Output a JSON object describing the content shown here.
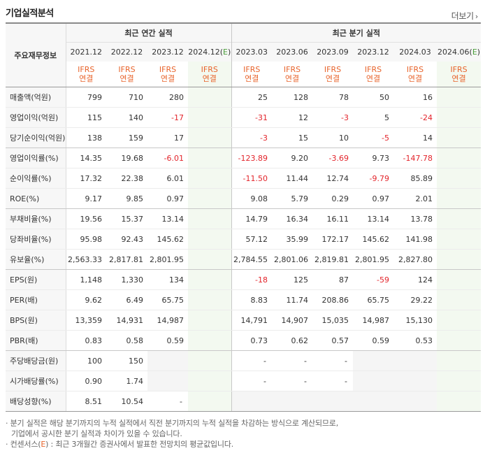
{
  "title": "기업실적분석",
  "more_label": "더보기",
  "header": {
    "row_label": "주요재무정보",
    "annual_group": "최근 연간 실적",
    "quarter_group": "최근 분기 실적",
    "annual_periods": [
      "2021.12",
      "2022.12",
      "2023.12",
      "2024.12(E)"
    ],
    "quarter_periods": [
      "2023.03",
      "2023.06",
      "2023.09",
      "2023.12",
      "2024.03",
      "2024.06(E)"
    ],
    "std_top": "IFRS",
    "std_bottom": "연결"
  },
  "rows": [
    {
      "label": "매출액(억원)",
      "values": [
        "799",
        "710",
        "280",
        "",
        "25",
        "128",
        "78",
        "50",
        "16",
        ""
      ]
    },
    {
      "label": "영업이익(억원)",
      "values": [
        "115",
        "140",
        "-17",
        "",
        "-31",
        "12",
        "-3",
        "5",
        "-24",
        ""
      ]
    },
    {
      "label": "당기순이익(억원)",
      "values": [
        "138",
        "159",
        "17",
        "",
        "-3",
        "15",
        "10",
        "-5",
        "14",
        ""
      ]
    },
    {
      "label": "영업이익률(%)",
      "values": [
        "14.35",
        "19.68",
        "-6.01",
        "",
        "-123.89",
        "9.20",
        "-3.69",
        "9.73",
        "-147.78",
        ""
      ]
    },
    {
      "label": "순이익률(%)",
      "values": [
        "17.32",
        "22.38",
        "6.01",
        "",
        "-11.50",
        "11.44",
        "12.74",
        "-9.79",
        "85.89",
        ""
      ]
    },
    {
      "label": "ROE(%)",
      "values": [
        "9.17",
        "9.85",
        "0.97",
        "",
        "9.08",
        "5.79",
        "0.29",
        "0.97",
        "2.01",
        ""
      ]
    },
    {
      "label": "부채비율(%)",
      "values": [
        "19.56",
        "15.37",
        "13.14",
        "",
        "14.79",
        "16.34",
        "16.11",
        "13.14",
        "13.78",
        ""
      ]
    },
    {
      "label": "당좌비율(%)",
      "values": [
        "95.98",
        "92.43",
        "145.62",
        "",
        "57.12",
        "35.99",
        "172.17",
        "145.62",
        "141.98",
        ""
      ]
    },
    {
      "label": "유보율(%)",
      "values": [
        "2,563.33",
        "2,817.81",
        "2,801.95",
        "",
        "2,784.55",
        "2,801.06",
        "2,819.81",
        "2,801.95",
        "2,827.80",
        ""
      ]
    },
    {
      "label": "EPS(원)",
      "values": [
        "1,148",
        "1,330",
        "134",
        "",
        "-18",
        "125",
        "87",
        "-59",
        "124",
        ""
      ]
    },
    {
      "label": "PER(배)",
      "values": [
        "9.62",
        "6.49",
        "65.75",
        "",
        "8.83",
        "11.74",
        "208.86",
        "65.75",
        "29.22",
        ""
      ]
    },
    {
      "label": "BPS(원)",
      "values": [
        "13,359",
        "14,931",
        "14,987",
        "",
        "14,791",
        "14,907",
        "15,035",
        "14,987",
        "15,130",
        ""
      ]
    },
    {
      "label": "PBR(배)",
      "values": [
        "0.83",
        "0.58",
        "0.59",
        "",
        "0.73",
        "0.62",
        "0.57",
        "0.59",
        "0.53",
        ""
      ]
    },
    {
      "label": "주당배당금(원)",
      "values": [
        "100",
        "150",
        "",
        "",
        "-",
        "-",
        "-",
        "",
        "",
        ""
      ]
    },
    {
      "label": "시가배당률(%)",
      "values": [
        "0.90",
        "1.74",
        "",
        "",
        "-",
        "-",
        "-",
        "",
        "",
        ""
      ]
    },
    {
      "label": "배당성향(%)",
      "values": [
        "8.51",
        "10.54",
        "-",
        "",
        "",
        "",
        "",
        "",
        "",
        ""
      ]
    }
  ],
  "notes": {
    "line1": "· 분기 실적은 해당 분기까지의 누적 실적에서 직전 분기까지의 누적 실적을 차감하는 방식으로 계산되므로,",
    "line2": "기업에서 공시한 분기 실적과 차이가 있을 수 있습니다.",
    "line3_prefix": "· 컨센서스(",
    "line3_e": "E",
    "line3_suffix": ") : 최근 3개월간 증권사에서 발표한 전망치의 평균값입니다."
  }
}
